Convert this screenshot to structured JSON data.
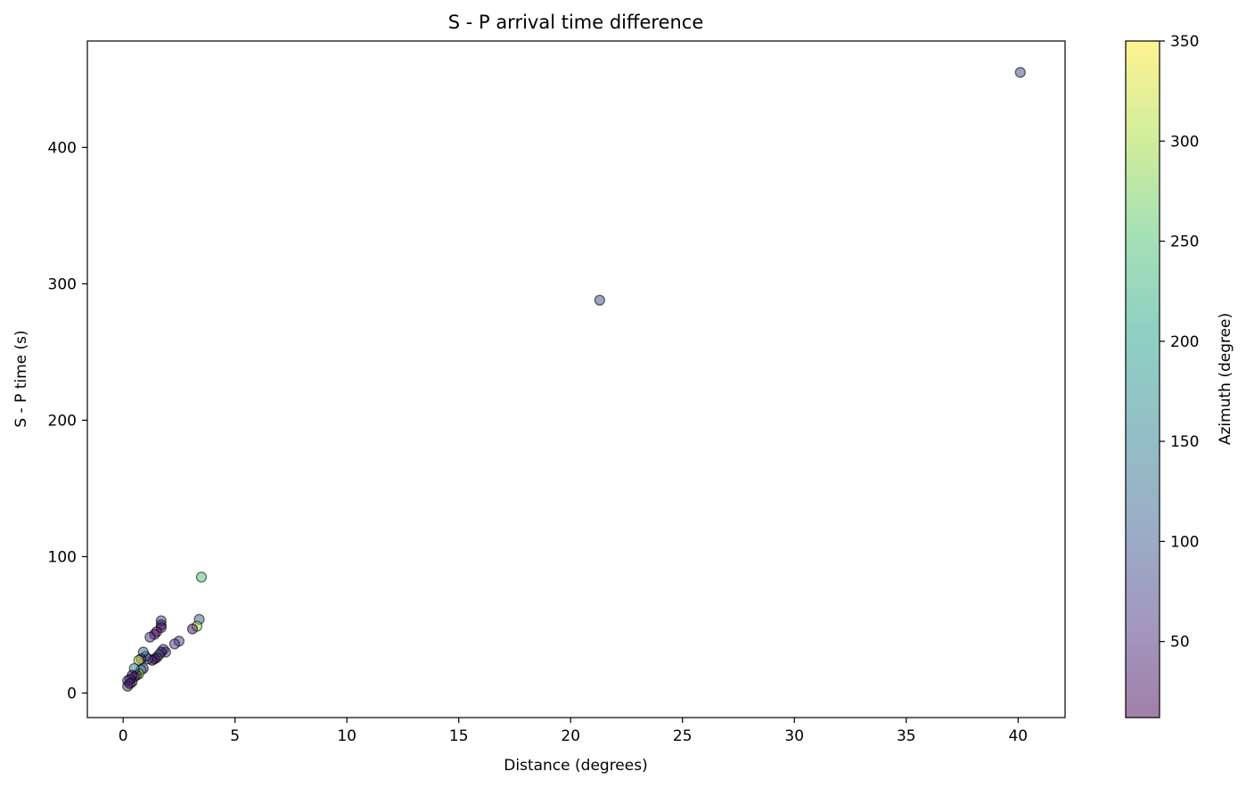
{
  "chart_data": {
    "type": "scatter",
    "title": "S - P arrival time difference",
    "xlabel": "Distance (degrees)",
    "ylabel": "S - P time (s)",
    "colorbar_label": "Azimuth (degree)",
    "xlim": [
      -1.6,
      42.1
    ],
    "ylim": [
      -18,
      478
    ],
    "x_ticks": [
      0,
      5,
      10,
      15,
      20,
      25,
      30,
      35,
      40
    ],
    "y_ticks": [
      0,
      100,
      200,
      300,
      400
    ],
    "colorbar_range": [
      12,
      350
    ],
    "colorbar_ticks": [
      50,
      100,
      150,
      200,
      250,
      300,
      350
    ],
    "colormap": "viridis",
    "point_alpha": 0.5,
    "grid": false,
    "legend": "none",
    "points": [
      {
        "x": 40.1,
        "y": 455,
        "azimuth": 80
      },
      {
        "x": 21.3,
        "y": 288,
        "azimuth": 85
      },
      {
        "x": 3.5,
        "y": 85,
        "azimuth": 250
      },
      {
        "x": 3.4,
        "y": 54,
        "azimuth": 110
      },
      {
        "x": 3.3,
        "y": 49,
        "azimuth": 300
      },
      {
        "x": 3.1,
        "y": 47,
        "azimuth": 20
      },
      {
        "x": 2.5,
        "y": 38,
        "azimuth": 70
      },
      {
        "x": 2.3,
        "y": 36,
        "azimuth": 60
      },
      {
        "x": 1.7,
        "y": 53,
        "azimuth": 60
      },
      {
        "x": 1.7,
        "y": 50,
        "azimuth": 40
      },
      {
        "x": 1.7,
        "y": 48,
        "azimuth": 15
      },
      {
        "x": 1.5,
        "y": 45,
        "azimuth": 30
      },
      {
        "x": 1.4,
        "y": 43,
        "azimuth": 15
      },
      {
        "x": 1.2,
        "y": 41,
        "azimuth": 60
      },
      {
        "x": 1.9,
        "y": 30,
        "azimuth": 70
      },
      {
        "x": 1.8,
        "y": 32,
        "azimuth": 60
      },
      {
        "x": 1.7,
        "y": 30,
        "azimuth": 15
      },
      {
        "x": 1.6,
        "y": 28,
        "azimuth": 120
      },
      {
        "x": 1.5,
        "y": 26,
        "azimuth": 40
      },
      {
        "x": 1.4,
        "y": 25,
        "azimuth": 20
      },
      {
        "x": 1.3,
        "y": 24,
        "azimuth": 15
      },
      {
        "x": 1.1,
        "y": 25,
        "azimuth": 80
      },
      {
        "x": 1.0,
        "y": 27,
        "azimuth": 100
      },
      {
        "x": 0.9,
        "y": 30,
        "azimuth": 130
      },
      {
        "x": 0.8,
        "y": 25,
        "azimuth": 20
      },
      {
        "x": 0.7,
        "y": 24,
        "azimuth": 310
      },
      {
        "x": 0.9,
        "y": 18,
        "azimuth": 50
      },
      {
        "x": 0.8,
        "y": 17,
        "azimuth": 180
      },
      {
        "x": 0.7,
        "y": 14,
        "azimuth": 320
      },
      {
        "x": 0.6,
        "y": 13,
        "azimuth": 30
      },
      {
        "x": 0.5,
        "y": 18,
        "azimuth": 160
      },
      {
        "x": 0.5,
        "y": 12,
        "azimuth": 60
      },
      {
        "x": 0.4,
        "y": 13,
        "azimuth": 20
      },
      {
        "x": 0.4,
        "y": 8,
        "azimuth": 15
      },
      {
        "x": 0.3,
        "y": 10,
        "azimuth": 90
      },
      {
        "x": 0.2,
        "y": 9,
        "azimuth": 70
      },
      {
        "x": 0.2,
        "y": 5,
        "azimuth": 50
      },
      {
        "x": 0.3,
        "y": 7,
        "azimuth": 30
      }
    ]
  }
}
